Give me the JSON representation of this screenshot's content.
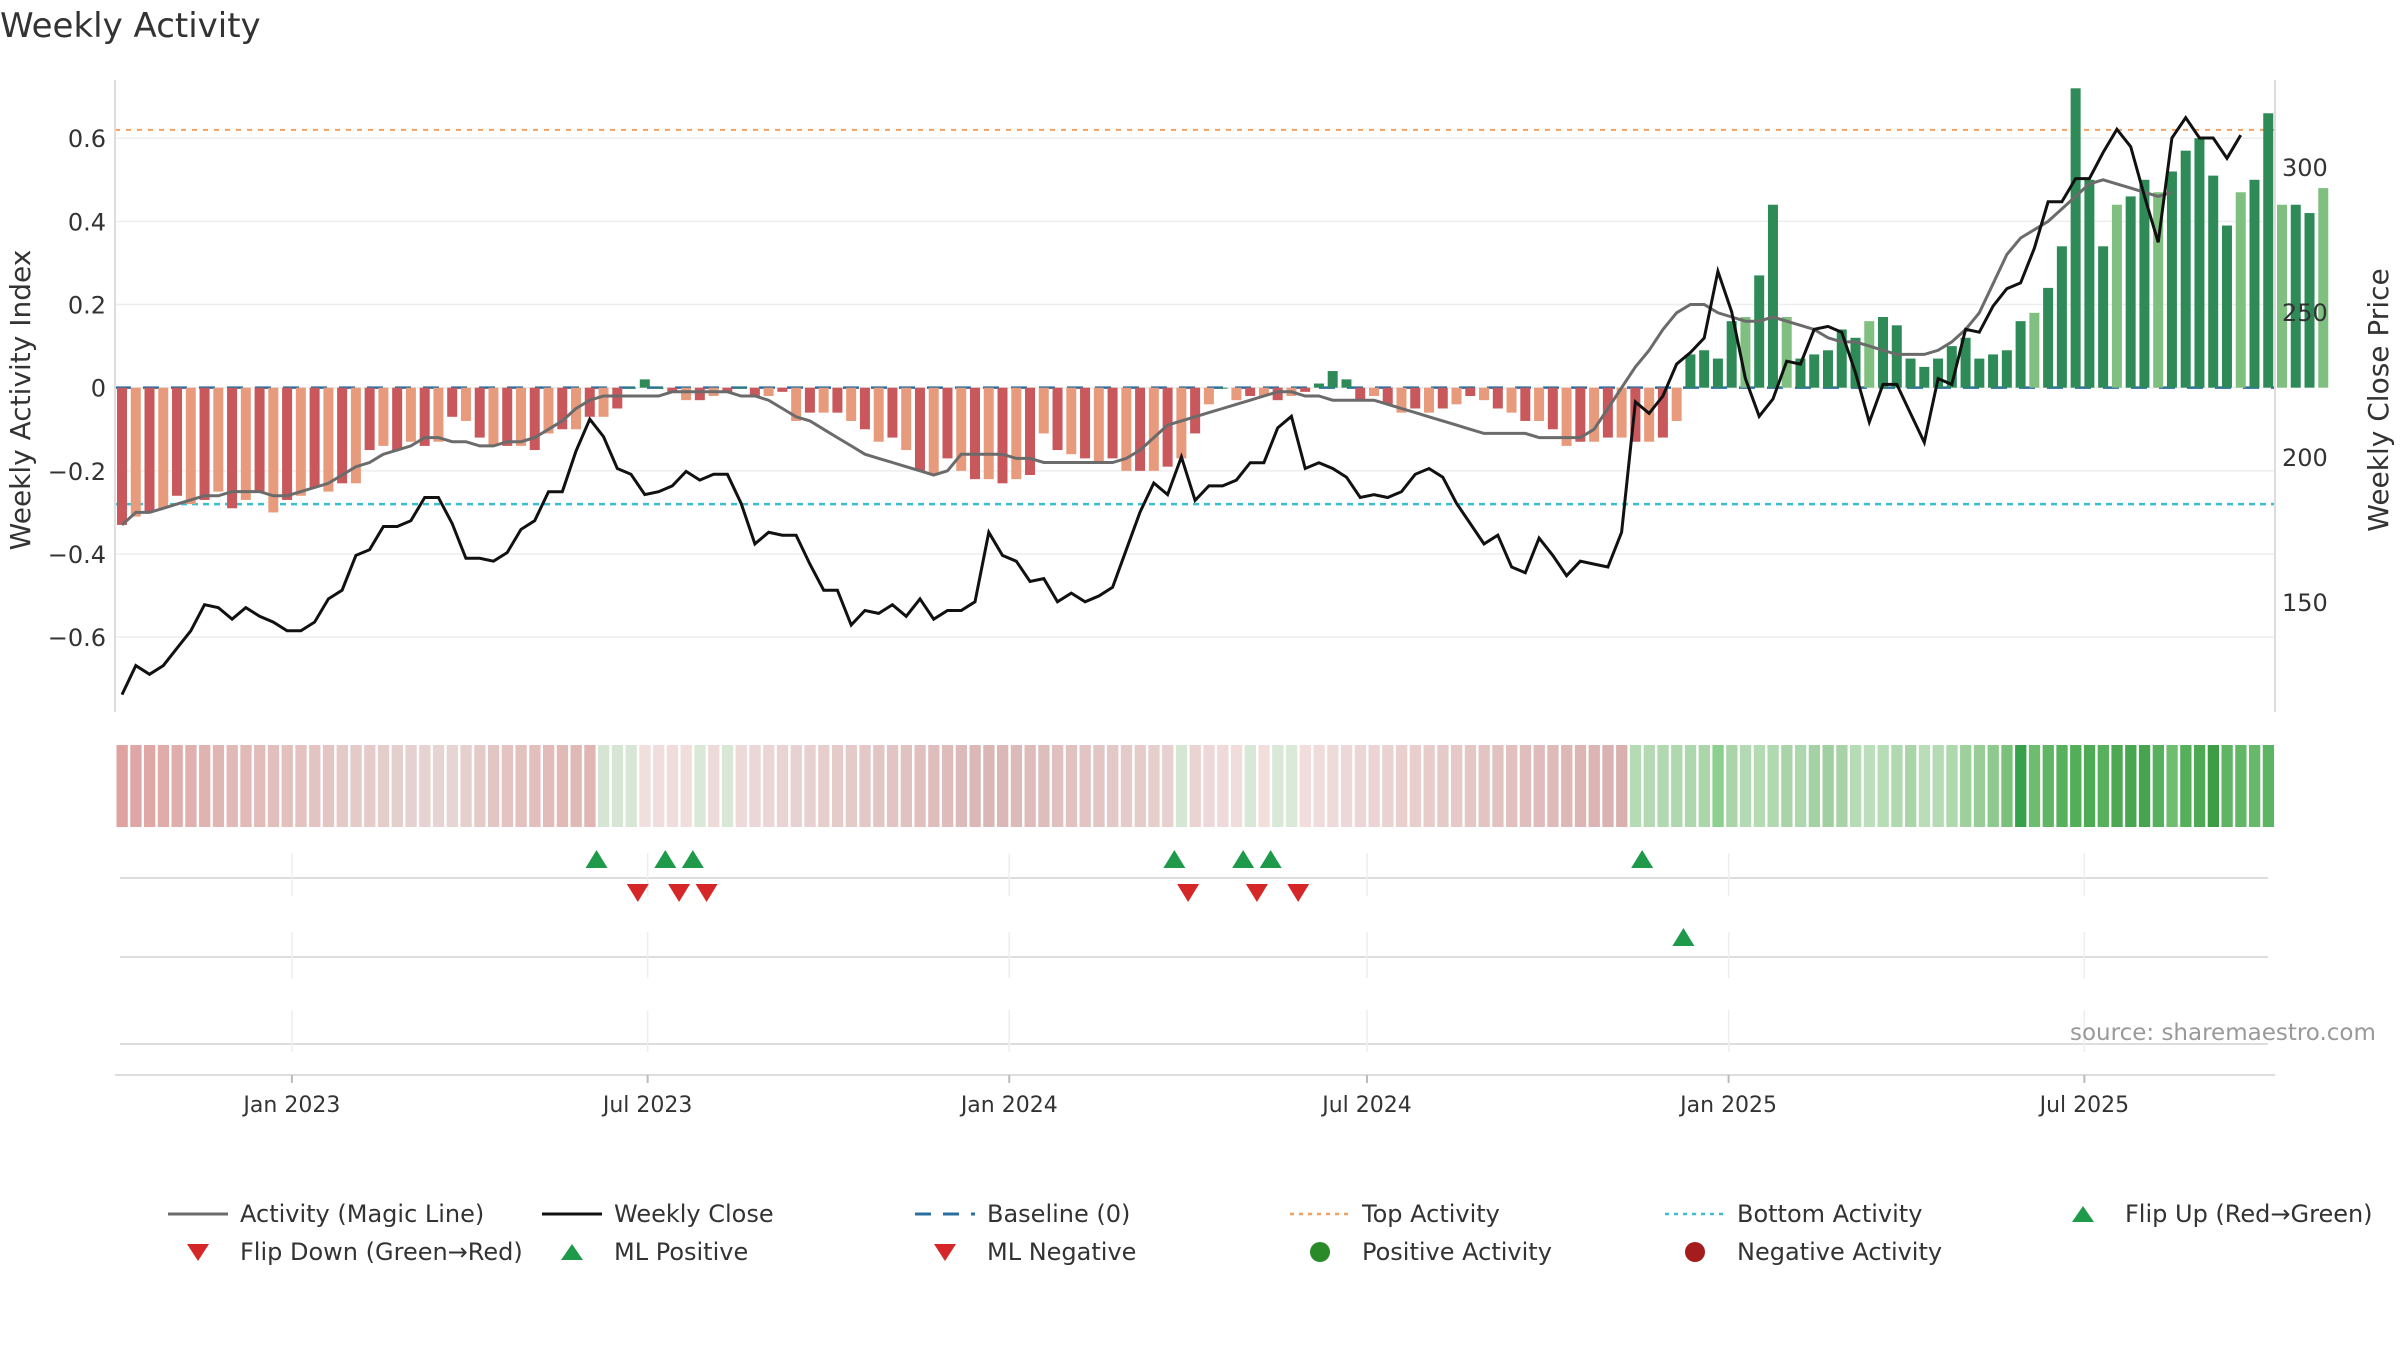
{
  "chart_data": {
    "type": "bar",
    "title": "Weekly Activity",
    "ylabel_left": "Weekly Activity Index",
    "ylabel_right": "Weekly Close Price",
    "source": "source: sharemaestro.com",
    "xlim": [
      "2022-10-03",
      "2025-10-06"
    ],
    "ylim_left": [
      -0.78,
      0.74
    ],
    "ylim_right": [
      112,
      330
    ],
    "left_ticks": [
      {
        "value": 0.6,
        "label": "0.6"
      },
      {
        "value": 0.4,
        "label": "0.4"
      },
      {
        "value": 0.2,
        "label": "0.2"
      },
      {
        "value": 0,
        "label": "0"
      },
      {
        "value": -0.2,
        "label": "−0.2"
      },
      {
        "value": -0.4,
        "label": "−0.4"
      },
      {
        "value": -0.6,
        "label": "−0.6"
      }
    ],
    "right_ticks": [
      {
        "value": 300,
        "label": "300"
      },
      {
        "value": 250,
        "label": "250"
      },
      {
        "value": 200,
        "label": "200"
      },
      {
        "value": 150,
        "label": "150"
      }
    ],
    "x_ticks": [
      {
        "date": "2023-01-01",
        "label": "Jan 2023"
      },
      {
        "date": "2023-07-01",
        "label": "Jul 2023"
      },
      {
        "date": "2024-01-01",
        "label": "Jan 2024"
      },
      {
        "date": "2024-07-01",
        "label": "Jul 2024"
      },
      {
        "date": "2025-01-01",
        "label": "Jan 2025"
      },
      {
        "date": "2025-07-01",
        "label": "Jul 2025"
      }
    ],
    "start_date": "2022-10-03",
    "top_activity": 0.62,
    "bottom_activity": -0.28,
    "baseline": 0,
    "activity": [
      -0.33,
      -0.31,
      -0.3,
      -0.29,
      -0.26,
      -0.28,
      -0.27,
      -0.25,
      -0.29,
      -0.27,
      -0.25,
      -0.3,
      -0.27,
      -0.26,
      -0.24,
      -0.25,
      -0.23,
      -0.23,
      -0.15,
      -0.14,
      -0.15,
      -0.13,
      -0.14,
      -0.13,
      -0.07,
      -0.08,
      -0.12,
      -0.14,
      -0.14,
      -0.14,
      -0.15,
      -0.11,
      -0.1,
      -0.1,
      -0.07,
      -0.07,
      -0.05,
      0.0,
      0.02,
      0.0,
      -0.01,
      -0.03,
      -0.03,
      -0.02,
      -0.01,
      0.0,
      -0.02,
      -0.02,
      -0.01,
      -0.08,
      -0.06,
      -0.06,
      -0.06,
      -0.08,
      -0.1,
      -0.13,
      -0.12,
      -0.15,
      -0.2,
      -0.21,
      -0.17,
      -0.2,
      -0.22,
      -0.22,
      -0.23,
      -0.22,
      -0.21,
      -0.11,
      -0.15,
      -0.16,
      -0.17,
      -0.18,
      -0.17,
      -0.2,
      -0.2,
      -0.2,
      -0.19,
      -0.17,
      -0.11,
      -0.04,
      0.0,
      -0.03,
      -0.02,
      -0.02,
      -0.03,
      -0.02,
      -0.01,
      0.01,
      0.04,
      0.02,
      -0.03,
      -0.02,
      -0.04,
      -0.06,
      -0.05,
      -0.06,
      -0.05,
      -0.04,
      -0.02,
      -0.03,
      -0.05,
      -0.06,
      -0.08,
      -0.08,
      -0.1,
      -0.14,
      -0.13,
      -0.13,
      -0.12,
      -0.12,
      -0.13,
      -0.13,
      -0.12,
      -0.08,
      0.08,
      0.09,
      0.07,
      0.16,
      0.17,
      0.27,
      0.44,
      0.17,
      0.07,
      0.08,
      0.09,
      0.14,
      0.12,
      0.16,
      0.17,
      0.15,
      0.07,
      0.05,
      0.07,
      0.1,
      0.12,
      0.07,
      0.08,
      0.09,
      0.16,
      0.18,
      0.24,
      0.34,
      0.72,
      0.5,
      0.34,
      0.44,
      0.46,
      0.5,
      0.47,
      0.52,
      0.57,
      0.6,
      0.51,
      0.39,
      0.47,
      0.5,
      0.66,
      0.44,
      0.44,
      0.42,
      0.48
    ],
    "magic_line": [
      -0.33,
      -0.3,
      -0.3,
      -0.29,
      -0.28,
      -0.27,
      -0.26,
      -0.26,
      -0.25,
      -0.25,
      -0.25,
      -0.26,
      -0.26,
      -0.25,
      -0.24,
      -0.23,
      -0.21,
      -0.19,
      -0.18,
      -0.16,
      -0.15,
      -0.14,
      -0.12,
      -0.12,
      -0.13,
      -0.13,
      -0.14,
      -0.14,
      -0.13,
      -0.13,
      -0.12,
      -0.1,
      -0.08,
      -0.05,
      -0.03,
      -0.02,
      -0.02,
      -0.02,
      -0.02,
      -0.02,
      -0.01,
      -0.01,
      -0.01,
      -0.01,
      -0.01,
      -0.02,
      -0.02,
      -0.03,
      -0.05,
      -0.07,
      -0.08,
      -0.1,
      -0.12,
      -0.14,
      -0.16,
      -0.17,
      -0.18,
      -0.19,
      -0.2,
      -0.21,
      -0.2,
      -0.16,
      -0.16,
      -0.16,
      -0.16,
      -0.17,
      -0.17,
      -0.18,
      -0.18,
      -0.18,
      -0.18,
      -0.18,
      -0.18,
      -0.17,
      -0.15,
      -0.12,
      -0.09,
      -0.08,
      -0.07,
      -0.06,
      -0.05,
      -0.04,
      -0.03,
      -0.02,
      -0.01,
      -0.01,
      -0.02,
      -0.02,
      -0.03,
      -0.03,
      -0.03,
      -0.03,
      -0.04,
      -0.05,
      -0.06,
      -0.07,
      -0.08,
      -0.09,
      -0.1,
      -0.11,
      -0.11,
      -0.11,
      -0.11,
      -0.12,
      -0.12,
      -0.12,
      -0.12,
      -0.1,
      -0.05,
      0.0,
      0.05,
      0.09,
      0.14,
      0.18,
      0.2,
      0.2,
      0.18,
      0.17,
      0.16,
      0.16,
      0.17,
      0.16,
      0.15,
      0.14,
      0.12,
      0.11,
      0.11,
      0.1,
      0.09,
      0.08,
      0.08,
      0.08,
      0.09,
      0.11,
      0.14,
      0.18,
      0.25,
      0.32,
      0.36,
      0.38,
      0.4,
      0.43,
      0.46,
      0.49,
      0.5,
      0.49,
      0.48,
      0.47,
      0.46,
      0.47
    ],
    "weekly_close": [
      118,
      128,
      125,
      128,
      134,
      140,
      149,
      148,
      144,
      148,
      145,
      143,
      140,
      140,
      143,
      151,
      154,
      166,
      168,
      176,
      176,
      178,
      186,
      186,
      177,
      165,
      165,
      164,
      167,
      175,
      178,
      188,
      188,
      202,
      213,
      207,
      196,
      194,
      187,
      188,
      190,
      195,
      192,
      194,
      194,
      184,
      170,
      174,
      173,
      173,
      163,
      154,
      154,
      142,
      147,
      146,
      149,
      145,
      151,
      144,
      147,
      147,
      150,
      174,
      166,
      164,
      157,
      158,
      150,
      153,
      150,
      152,
      155,
      168,
      181,
      191,
      187,
      200,
      185,
      190,
      190,
      192,
      198,
      198,
      210,
      214,
      196,
      198,
      196,
      193,
      186,
      187,
      186,
      188,
      194,
      196,
      193,
      184,
      177,
      170,
      173,
      162,
      160,
      172,
      166,
      159,
      164,
      163,
      162,
      174,
      219,
      215,
      221,
      232,
      236,
      241,
      264,
      250,
      227,
      214,
      220,
      233,
      232,
      244,
      245,
      243,
      229,
      212,
      225,
      225,
      215,
      205,
      227,
      225,
      244,
      243,
      252,
      258,
      260,
      272,
      288,
      288,
      296,
      296,
      305,
      313,
      307,
      290,
      274,
      310,
      317,
      310,
      310,
      303,
      311
    ],
    "activity_strip_colors": [
      "#dea3a1",
      "#dea7a5",
      "#dea8a6",
      "#dfacaa",
      "#dfaeac",
      "#dfb0ae",
      "#e0b3b1",
      "#e0b6b4",
      "#e1b9b7",
      "#e1bab8",
      "#e2bcba",
      "#e2bfbd",
      "#e2c0be",
      "#e3c2c0",
      "#e3c4c2",
      "#e3c6c4",
      "#e4c9c7",
      "#e4cac8",
      "#e5cccb",
      "#e5cdcc",
      "#e5cfcd",
      "#e5d1cf",
      "#e6d2d0",
      "#e6d4d2",
      "#e6d5d3",
      "#e5d0ce",
      "#e4cbc9",
      "#e3c6c4",
      "#e3c4c2",
      "#e2c1bf",
      "#e2bfbd",
      "#e1bcba",
      "#e1bab8",
      "#e0b8b6",
      "#e0b5b3",
      "#d5e4d3",
      "#d6e5d4",
      "#d8e6d6",
      "#f1dedd",
      "#f0dedd",
      "#efdcdb",
      "#f0dddc",
      "#d9e8d7",
      "#eddbda",
      "#d8e7d6",
      "#ecd9d8",
      "#ebd7d6",
      "#ead6d5",
      "#e9d4d3",
      "#e8d2d1",
      "#e7d0cf",
      "#e6cecd",
      "#e5cccb",
      "#e4cac9",
      "#e3c8c7",
      "#e2c6c5",
      "#e1c4c3",
      "#e0c2c1",
      "#dfc0bf",
      "#debebd",
      "#ddbcbb",
      "#dcbab9",
      "#dbb8b7",
      "#dab6b5",
      "#dbb8b7",
      "#dcbab9",
      "#ddbcbb",
      "#debebd",
      "#dfc0bf",
      "#e0c2c1",
      "#e1c4c3",
      "#e2c6c5",
      "#e3c8c7",
      "#e4cac9",
      "#e5cccb",
      "#e6cecd",
      "#e7d0cf",
      "#d6e6d4",
      "#e9d4d3",
      "#eed8d7",
      "#efdad9",
      "#f0dcdb",
      "#d8e7d6",
      "#f1dedd",
      "#d9e8d7",
      "#dae9d8",
      "#f0dddc",
      "#efdcdb",
      "#eedad9",
      "#edd8d7",
      "#ecd6d5",
      "#ebd4d3",
      "#ead2d1",
      "#e9d0cf",
      "#e8cecd",
      "#e7cccb",
      "#e6cac9",
      "#e5c8c7",
      "#e4c6c5",
      "#e3c4c3",
      "#e2c2c1",
      "#e1c0bf",
      "#e0bebd",
      "#dfbcbb",
      "#debab9",
      "#ddb8b7",
      "#dcb6b5",
      "#dbb4b3",
      "#dab2b1",
      "#d9b0af",
      "#b5dbb4",
      "#b3dab2",
      "#b1d9b0",
      "#afd8ae",
      "#add7ac",
      "#abd6aa",
      "#8ccf8f",
      "#aad5a9",
      "#b3dab2",
      "#b5dbb4",
      "#b1d9b0",
      "#a9d4a8",
      "#add7ac",
      "#a5d2a4",
      "#a1d0a0",
      "#a7d3a6",
      "#b6dcb5",
      "#bcdfbb",
      "#b7ddb6",
      "#b0d9af",
      "#aad5a9",
      "#b8ddb7",
      "#b4dbb3",
      "#aed8ad",
      "#9ed09d",
      "#98cd97",
      "#8ec98d",
      "#79c17b",
      "#37a04a",
      "#6dbc70",
      "#5fb564",
      "#56b05c",
      "#52ae58",
      "#4faa55",
      "#56b05c",
      "#4ca853",
      "#48a650",
      "#45a44d",
      "#57b05d",
      "#6ebd71",
      "#55af5b",
      "#4ea955",
      "#3b9e45",
      "#5fb564",
      "#62b767",
      "#66b96a",
      "#5db463"
    ],
    "rows": [
      {
        "name": "Flip Up / Flip Down",
        "flip_up": [
          "2023-06-05",
          "2023-07-10",
          "2023-07-24",
          "2024-03-25",
          "2024-04-29",
          "2024-05-13",
          "2024-11-18"
        ],
        "flip_down": [
          "2023-06-26",
          "2023-07-17",
          "2023-07-31",
          "2024-04-01",
          "2024-05-06",
          "2024-05-27"
        ]
      },
      {
        "name": "ML Positive / ML Negative",
        "ml_positive": [
          "2024-12-09"
        ],
        "ml_negative": []
      },
      {
        "name": "Positive / Negative Activity",
        "positive": [],
        "negative": []
      }
    ],
    "legend": [
      {
        "label": "Activity (Magic Line)",
        "symbol": "line",
        "color": "#6b6b6b"
      },
      {
        "label": "Weekly Close",
        "symbol": "line",
        "color": "#111111"
      },
      {
        "label": "Baseline (0)",
        "symbol": "dash",
        "color": "#2b6fa0"
      },
      {
        "label": "Top Activity",
        "symbol": "dot-line",
        "color": "#f0a060"
      },
      {
        "label": "Bottom Activity",
        "symbol": "dot-line",
        "color": "#3bbfd0"
      },
      {
        "label": "Flip Up (Red→Green)",
        "symbol": "triangle-up",
        "color": "#1f9a4a"
      },
      {
        "label": "Flip Down (Green→Red)",
        "symbol": "triangle-down",
        "color": "#d62728"
      },
      {
        "label": "ML Positive",
        "symbol": "triangle-up",
        "color": "#1f9a4a"
      },
      {
        "label": "ML Negative",
        "symbol": "triangle-down",
        "color": "#d62728"
      },
      {
        "label": "Positive Activity",
        "symbol": "circle",
        "color": "#2a8a2a"
      },
      {
        "label": "Negative Activity",
        "symbol": "circle",
        "color": "#a51c1c"
      }
    ],
    "colors": {
      "pos_dark": "#2e8b57",
      "pos_light": "#7fbf7f",
      "neg_dark": "#c8585c",
      "neg_light": "#e89b7c",
      "grid": "#eeeeee",
      "axis": "#dddddd",
      "text": "#333333"
    }
  }
}
